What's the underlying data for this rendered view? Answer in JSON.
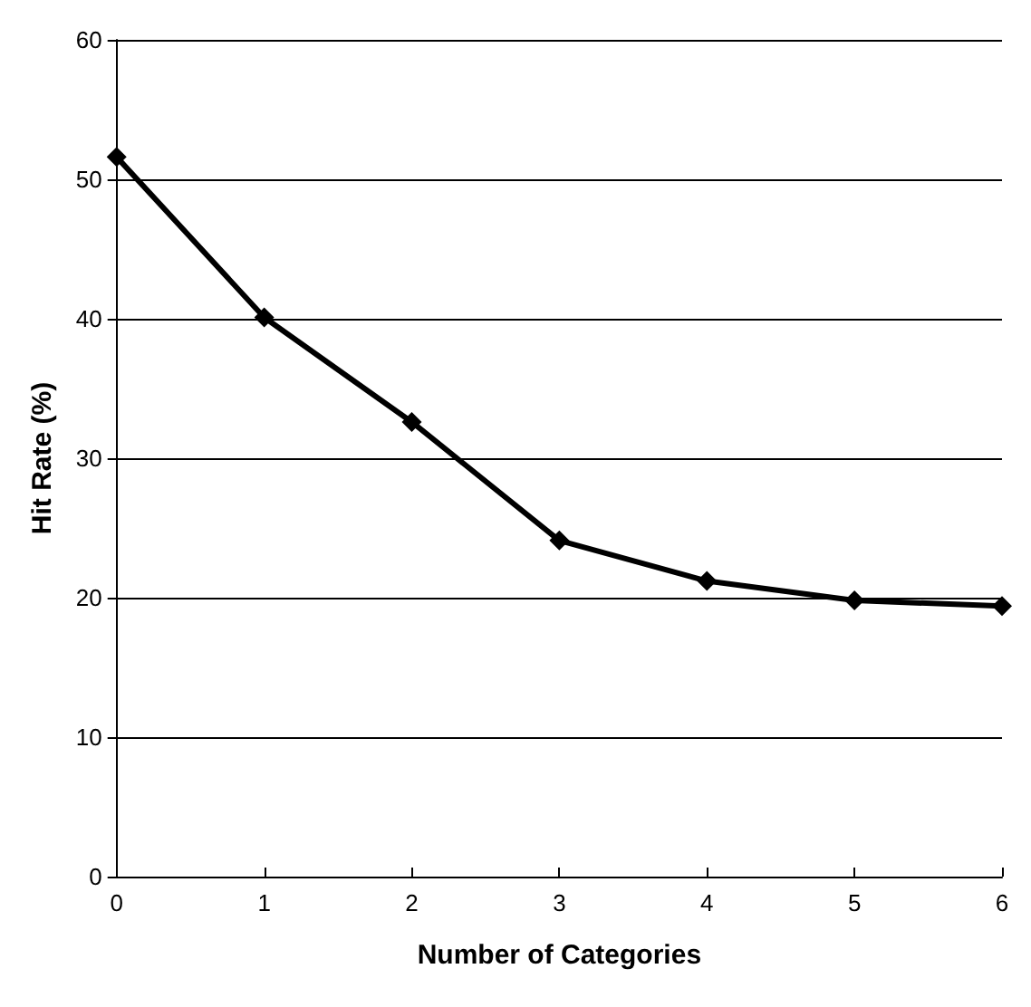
{
  "chart_data": {
    "type": "line",
    "xlabel": "Number of Categories",
    "ylabel": "Hit Rate (%)",
    "x": [
      0,
      1,
      2,
      3,
      4,
      5,
      6
    ],
    "series": [
      {
        "color": "#000000",
        "values": [
          51.6,
          40.1,
          32.6,
          24.1,
          21.2,
          19.8,
          19.4
        ]
      }
    ],
    "xlim": [
      0,
      6
    ],
    "xticks": [
      0,
      1,
      2,
      3,
      4,
      5,
      6
    ],
    "ylim": [
      0,
      60
    ],
    "yticks": [
      0,
      10,
      20,
      30,
      40,
      50,
      60
    ],
    "grid": "y",
    "marker": "diamond",
    "line_style": "solid"
  }
}
